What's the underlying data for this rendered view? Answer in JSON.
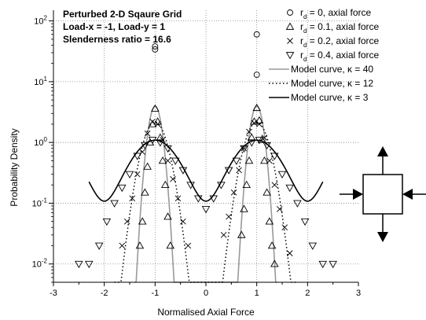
{
  "chart_data": {
    "type": "scatter",
    "title": "",
    "annotations": [
      "Perturbed 2-D Sqaure Grid",
      "Load-x = -1, Load-y = 1",
      "Slenderness ratio = 16.6"
    ],
    "xlabel": "Normalised Axial Force",
    "ylabel": "Probability Density",
    "xlim": [
      -3,
      3
    ],
    "ylim": [
      0.005,
      150
    ],
    "yscale": "log",
    "x_ticks": [
      "-3",
      "-2",
      "-1",
      "0",
      "1",
      "2",
      "3"
    ],
    "y_ticks": [
      {
        "base": "10",
        "exp": "2"
      },
      {
        "base": "10",
        "exp": "1"
      },
      {
        "base": "10",
        "exp": "0"
      },
      {
        "base": "10",
        "exp": "-1"
      },
      {
        "base": "10",
        "exp": "-2"
      }
    ],
    "grid": "dotted",
    "legend_placement": "top-right",
    "series": [
      {
        "name_prefix": "r",
        "name_sub": "d",
        "name_suffix": " = 0, axial force",
        "marker": "circle",
        "x": [
          -1.0,
          -1.0,
          1.0,
          1.0
        ],
        "y": [
          38,
          34,
          60,
          13
        ]
      },
      {
        "name_prefix": "r",
        "name_sub": "d",
        "name_suffix": " = 0.1, axial force",
        "marker": "triangle-up",
        "x": [
          -1.3,
          -1.25,
          -1.2,
          -1.15,
          -1.1,
          -1.05,
          -1.0,
          -0.95,
          -0.9,
          -0.85,
          -0.8,
          -0.75,
          -0.7,
          0.7,
          0.75,
          0.8,
          0.85,
          0.9,
          0.95,
          1.0,
          1.05,
          1.1,
          1.15,
          1.2,
          1.25,
          1.3,
          1.35
        ],
        "y": [
          0.02,
          0.05,
          0.15,
          0.4,
          1.0,
          2.0,
          3.6,
          2.2,
          1.2,
          0.5,
          0.2,
          0.06,
          0.02,
          0.03,
          0.08,
          0.2,
          0.5,
          1.2,
          2.2,
          3.7,
          2.3,
          1.1,
          0.5,
          0.15,
          0.05,
          0.02,
          0.01
        ]
      },
      {
        "name_prefix": "r",
        "name_sub": "d",
        "name_suffix": " = 0.2, axial force",
        "marker": "x",
        "x": [
          -1.65,
          -1.55,
          -1.45,
          -1.35,
          -1.25,
          -1.15,
          -1.05,
          -0.95,
          -0.85,
          -0.75,
          -0.65,
          -0.55,
          -0.45,
          -0.35,
          0.35,
          0.45,
          0.55,
          0.65,
          0.75,
          0.85,
          0.95,
          1.05,
          1.15,
          1.25,
          1.35,
          1.45,
          1.55,
          1.65
        ],
        "y": [
          0.02,
          0.05,
          0.12,
          0.3,
          0.7,
          1.4,
          2.2,
          2.0,
          1.1,
          0.5,
          0.25,
          0.12,
          0.05,
          0.02,
          0.03,
          0.06,
          0.15,
          0.35,
          0.8,
          1.5,
          2.1,
          2.0,
          1.2,
          0.5,
          0.2,
          0.08,
          0.04,
          0.015
        ]
      },
      {
        "name_prefix": "r",
        "name_sub": "d",
        "name_suffix": " = 0.4, axial force",
        "marker": "triangle-down",
        "x": [
          -2.5,
          -2.3,
          -2.1,
          -1.95,
          -1.8,
          -1.65,
          -1.5,
          -1.35,
          -1.2,
          -1.05,
          -0.9,
          -0.75,
          -0.6,
          -0.45,
          -0.3,
          -0.15,
          0.0,
          0.15,
          0.3,
          0.45,
          0.6,
          0.75,
          0.9,
          1.05,
          1.2,
          1.35,
          1.5,
          1.65,
          1.8,
          1.95,
          2.1,
          2.3,
          2.5
        ],
        "y": [
          0.01,
          0.01,
          0.02,
          0.05,
          0.1,
          0.18,
          0.3,
          0.6,
          0.9,
          1.1,
          1.0,
          0.8,
          0.5,
          0.35,
          0.2,
          0.12,
          0.08,
          0.12,
          0.2,
          0.35,
          0.5,
          0.8,
          1.0,
          1.1,
          0.9,
          0.6,
          0.3,
          0.18,
          0.1,
          0.05,
          0.02,
          0.01,
          0.01
        ]
      },
      {
        "name": "Model curve, κ = 40",
        "line": "solid",
        "color": "#999999",
        "kappa": 40,
        "domain": [
          -1.4,
          1.4
        ],
        "floor": 0.005
      },
      {
        "name": "Model curve, κ = 12",
        "line": "dotted",
        "color": "#000000",
        "kappa": 12,
        "domain": [
          -1.8,
          1.8
        ],
        "floor": 0.005
      },
      {
        "name": "Model curve, κ = 3",
        "line": "solid",
        "color": "#000000",
        "kappa": 3,
        "domain": [
          -2.3,
          2.3
        ],
        "floor": 0.005
      }
    ]
  }
}
